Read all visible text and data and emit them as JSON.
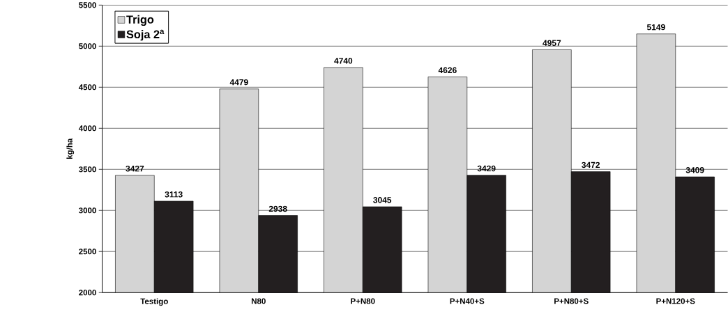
{
  "chart_data": {
    "type": "bar",
    "ylabel": "kg/ha",
    "categories": [
      "Testigo",
      "N80",
      "P+N80",
      "P+N40+S",
      "P+N80+S",
      "P+N120+S"
    ],
    "series": [
      {
        "name": "Trigo",
        "color": "#d4d4d4",
        "values": [
          3427,
          4479,
          4740,
          4626,
          4957,
          5149
        ]
      },
      {
        "name": "Soja 2$^{a}$",
        "color": "#231f20",
        "values": [
          3113,
          2938,
          3045,
          3429,
          3472,
          3409
        ]
      }
    ],
    "ylim": [
      2000,
      5500
    ],
    "yticks": [
      2000,
      2500,
      3000,
      3500,
      4000,
      4500,
      5000,
      5500
    ],
    "grid": "y",
    "legend": "top left",
    "data_labels": true
  }
}
